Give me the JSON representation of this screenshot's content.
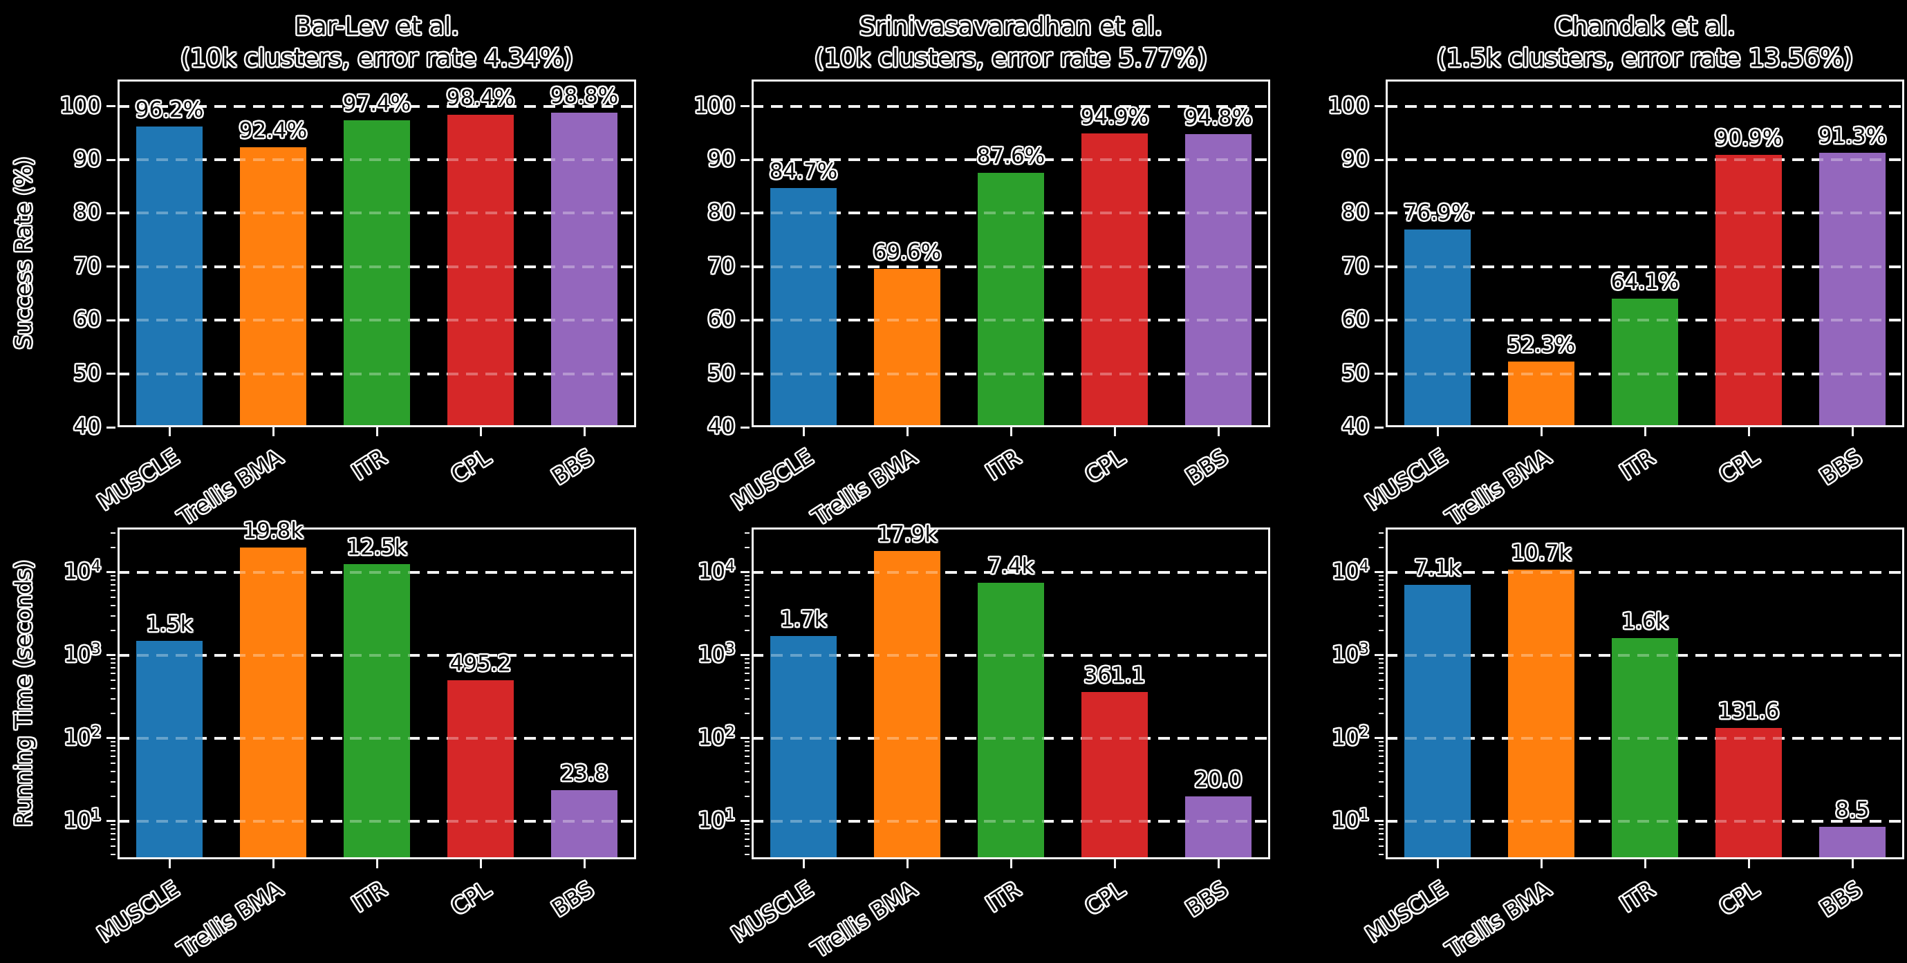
{
  "figure": {
    "background": "#000000",
    "grid_color": "#ffffff",
    "spine_color": "#f5f5f5",
    "text_color": "#0a0a0a",
    "text_outline_color": "#ffffff",
    "bar_colors": [
      "#1f77b4",
      "#ff7f0e",
      "#2ca02c",
      "#d62728",
      "#9467bd"
    ]
  },
  "chart_data": [
    {
      "type": "bar",
      "panel": "top-left",
      "title": "Bar-Lev et al.",
      "subtitle": "(10k clusters, error rate 4.34%)",
      "ylabel": "Success Rate (%)",
      "categories": [
        "MUSCLE",
        "Trellis BMA",
        "ITR",
        "CPL",
        "BBS"
      ],
      "values": [
        96.2,
        92.4,
        97.4,
        98.4,
        98.8
      ],
      "value_labels": [
        "96.2%",
        "92.4%",
        "97.4%",
        "98.4%",
        "98.8%"
      ],
      "ylim": [
        40,
        105
      ],
      "yticks": [
        40,
        50,
        60,
        70,
        80,
        90,
        100
      ],
      "ytick_labels": [
        "40",
        "50",
        "60",
        "70",
        "80",
        "90",
        "100"
      ],
      "grid": "dashed-horizontal"
    },
    {
      "type": "bar",
      "panel": "top-center",
      "title": "Srinivasavaradhan et al.",
      "subtitle": "(10k clusters, error rate 5.77%)",
      "categories": [
        "MUSCLE",
        "Trellis BMA",
        "ITR",
        "CPL",
        "BBS"
      ],
      "values": [
        84.7,
        69.6,
        87.6,
        94.9,
        94.8
      ],
      "value_labels": [
        "84.7%",
        "69.6%",
        "87.6%",
        "94.9%",
        "94.8%"
      ],
      "ylim": [
        40,
        105
      ],
      "yticks": [
        40,
        50,
        60,
        70,
        80,
        90,
        100
      ],
      "ytick_labels": [
        "40",
        "50",
        "60",
        "70",
        "80",
        "90",
        "100"
      ],
      "grid": "dashed-horizontal"
    },
    {
      "type": "bar",
      "panel": "top-right",
      "title": "Chandak et al.",
      "subtitle": "(1.5k clusters, error rate 13.56%)",
      "categories": [
        "MUSCLE",
        "Trellis BMA",
        "ITR",
        "CPL",
        "BBS"
      ],
      "values": [
        76.9,
        52.3,
        64.1,
        90.9,
        91.3
      ],
      "value_labels": [
        "76.9%",
        "52.3%",
        "64.1%",
        "90.9%",
        "91.3%"
      ],
      "ylim": [
        40,
        105
      ],
      "yticks": [
        40,
        50,
        60,
        70,
        80,
        90,
        100
      ],
      "ytick_labels": [
        "40",
        "50",
        "60",
        "70",
        "80",
        "90",
        "100"
      ],
      "grid": "dashed-horizontal"
    },
    {
      "type": "bar",
      "panel": "bottom-left",
      "yscale": "log",
      "ylabel": "Running Time (seconds)",
      "categories": [
        "MUSCLE",
        "Trellis BMA",
        "ITR",
        "CPL",
        "BBS"
      ],
      "values": [
        1500,
        19800,
        12500,
        495.2,
        23.8
      ],
      "value_labels": [
        "1.5k",
        "19.8k",
        "12.5k",
        "495.2",
        "23.8"
      ],
      "ylim_log10": [
        0.54,
        4.54
      ],
      "yticks": [
        {
          "base": "10",
          "exp": "1"
        },
        {
          "base": "10",
          "exp": "2"
        },
        {
          "base": "10",
          "exp": "3"
        },
        {
          "base": "10",
          "exp": "4"
        }
      ],
      "grid": "dashed-horizontal"
    },
    {
      "type": "bar",
      "panel": "bottom-center",
      "yscale": "log",
      "categories": [
        "MUSCLE",
        "Trellis BMA",
        "ITR",
        "CPL",
        "BBS"
      ],
      "values": [
        1700,
        17900,
        7400,
        361.1,
        20.0
      ],
      "value_labels": [
        "1.7k",
        "17.9k",
        "7.4k",
        "361.1",
        "20.0"
      ],
      "ylim_log10": [
        0.54,
        4.54
      ],
      "yticks": [
        {
          "base": "10",
          "exp": "1"
        },
        {
          "base": "10",
          "exp": "2"
        },
        {
          "base": "10",
          "exp": "3"
        },
        {
          "base": "10",
          "exp": "4"
        }
      ],
      "grid": "dashed-horizontal"
    },
    {
      "type": "bar",
      "panel": "bottom-right",
      "yscale": "log",
      "categories": [
        "MUSCLE",
        "Trellis BMA",
        "ITR",
        "CPL",
        "BBS"
      ],
      "values": [
        7100,
        10700,
        1600,
        131.6,
        8.5
      ],
      "value_labels": [
        "7.1k",
        "10.7k",
        "1.6k",
        "131.6",
        "8.5"
      ],
      "ylim_log10": [
        0.54,
        4.54
      ],
      "yticks": [
        {
          "base": "10",
          "exp": "1"
        },
        {
          "base": "10",
          "exp": "2"
        },
        {
          "base": "10",
          "exp": "3"
        },
        {
          "base": "10",
          "exp": "4"
        }
      ],
      "grid": "dashed-horizontal"
    }
  ]
}
